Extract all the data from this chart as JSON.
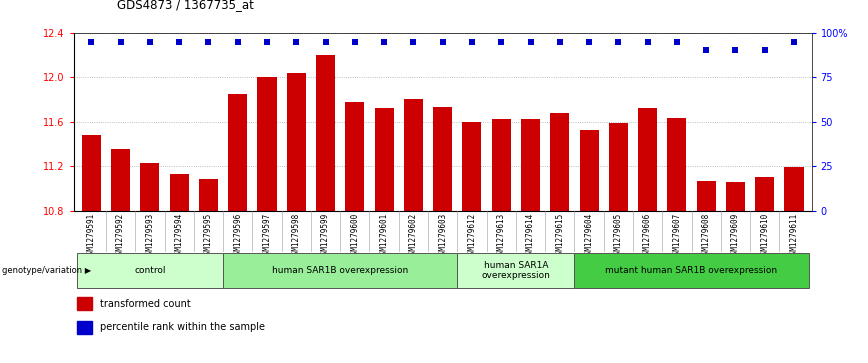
{
  "title": "GDS4873 / 1367735_at",
  "samples": [
    "GSM1279591",
    "GSM1279592",
    "GSM1279593",
    "GSM1279594",
    "GSM1279595",
    "GSM1279596",
    "GSM1279597",
    "GSM1279598",
    "GSM1279599",
    "GSM1279600",
    "GSM1279601",
    "GSM1279602",
    "GSM1279603",
    "GSM1279612",
    "GSM1279613",
    "GSM1279614",
    "GSM1279615",
    "GSM1279604",
    "GSM1279605",
    "GSM1279606",
    "GSM1279607",
    "GSM1279608",
    "GSM1279609",
    "GSM1279610",
    "GSM1279611"
  ],
  "bar_values": [
    11.48,
    11.35,
    11.23,
    11.13,
    11.08,
    11.85,
    12.0,
    12.04,
    12.2,
    11.78,
    11.72,
    11.8,
    11.73,
    11.6,
    11.62,
    11.62,
    11.68,
    11.52,
    11.59,
    11.72,
    11.63,
    11.07,
    11.06,
    11.1,
    11.19
  ],
  "dot_values": [
    95,
    95,
    95,
    95,
    95,
    95,
    95,
    95,
    95,
    95,
    95,
    95,
    95,
    95,
    95,
    95,
    95,
    95,
    95,
    95,
    95,
    90,
    90,
    90,
    95
  ],
  "ylim_left": [
    10.8,
    12.4
  ],
  "ylim_right": [
    0,
    100
  ],
  "yticks_left": [
    10.8,
    11.2,
    11.6,
    12.0,
    12.4
  ],
  "yticks_right": [
    0,
    25,
    50,
    75,
    100
  ],
  "ytick_labels_right": [
    "0",
    "25",
    "50",
    "75",
    "100%"
  ],
  "bar_color": "#cc0000",
  "dot_color": "#0000cc",
  "groups": [
    {
      "label": "control",
      "start": 0,
      "end": 5,
      "color": "#ccffcc"
    },
    {
      "label": "human SAR1B overexpression",
      "start": 5,
      "end": 13,
      "color": "#99ee99"
    },
    {
      "label": "human SAR1A\noverexpression",
      "start": 13,
      "end": 17,
      "color": "#ccffcc"
    },
    {
      "label": "mutant human SAR1B overexpression",
      "start": 17,
      "end": 25,
      "color": "#44cc44"
    }
  ],
  "genotype_label": "genotype/variation",
  "legend_items": [
    {
      "color": "#cc0000",
      "label": "transformed count"
    },
    {
      "color": "#0000cc",
      "label": "percentile rank within the sample"
    }
  ],
  "grid_color": "#aaaaaa",
  "background_color": "#ffffff",
  "bar_width": 0.65,
  "tick_bg_color": "#cccccc"
}
